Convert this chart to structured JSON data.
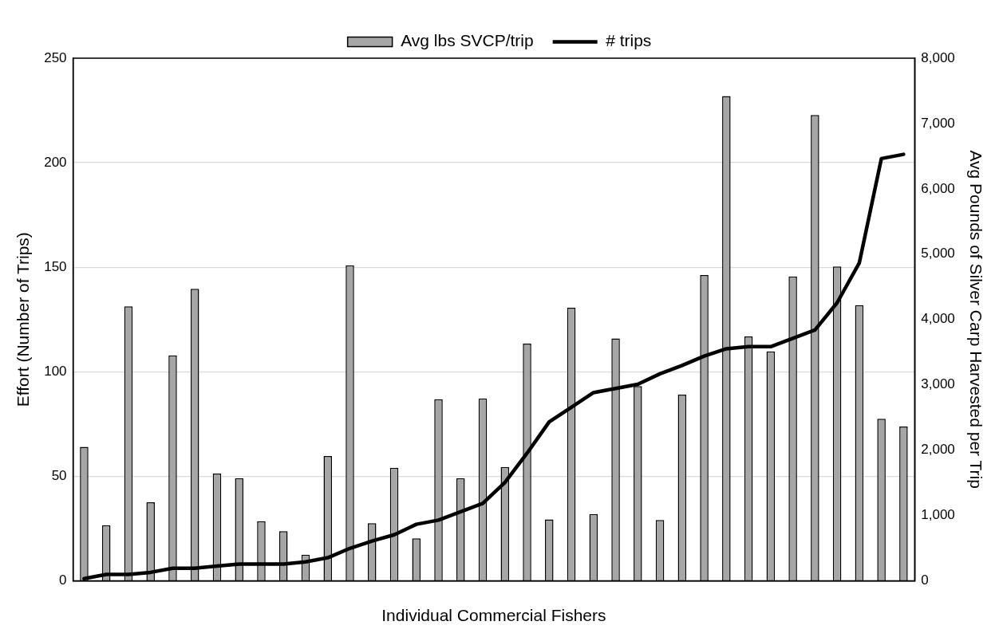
{
  "chart_data": {
    "type": "bar",
    "xlabel": "Individual Commercial Fishers",
    "ylabel": "Effort (Number of Trips)",
    "y2label": "Avg Pounds of Silver Carp Harvested per Trip",
    "categories": [
      null,
      null,
      null,
      null,
      null,
      null,
      null,
      null,
      null,
      null,
      null,
      null,
      null,
      null,
      null,
      null,
      null,
      null,
      null,
      null,
      null,
      null,
      null,
      null,
      null,
      null,
      null,
      null,
      null,
      null,
      null,
      null,
      null,
      null,
      null,
      null,
      null,
      null
    ],
    "series": [
      {
        "name": "Avg lbs SVCP/trip",
        "axis": "y2",
        "color": "#a6a6a6",
        "values": [
          2050,
          850,
          4200,
          1200,
          3450,
          4470,
          1640,
          1570,
          910,
          760,
          400,
          1910,
          4830,
          880,
          1730,
          650,
          2780,
          1570,
          2790,
          1740,
          3630,
          940,
          4180,
          1020,
          3710,
          2980,
          930,
          2850,
          4680,
          7420,
          3740,
          3510,
          4660,
          7130,
          4810,
          4220,
          2480,
          2360
        ]
      },
      {
        "name": "# trips",
        "type": "line",
        "axis": "y",
        "color": "#000000",
        "values": [
          1,
          3,
          3,
          4,
          6,
          6,
          7,
          8,
          8,
          8,
          9,
          11,
          15.5,
          19,
          22,
          27,
          29,
          33,
          37,
          47,
          61,
          76,
          83,
          90,
          92,
          94,
          99,
          103,
          107.5,
          111,
          112,
          112,
          116,
          120,
          133,
          152,
          202,
          204
        ]
      }
    ],
    "ylim": [
      0,
      250
    ],
    "yticks": [
      0,
      50,
      100,
      150,
      200,
      250
    ],
    "y2lim": [
      0,
      8000
    ],
    "y2ticks": [
      0,
      {
        "value": 1000,
        "label": "1,000"
      },
      {
        "value": 2000,
        "label": "2,000"
      },
      {
        "value": 3000,
        "label": "3,000"
      },
      {
        "value": 4000,
        "label": "4,000"
      },
      {
        "value": 5000,
        "label": "5,000"
      },
      {
        "value": 6000,
        "label": "6,000"
      },
      {
        "value": 7000,
        "label": "7,000"
      },
      {
        "value": 8000,
        "label": "8,000"
      }
    ],
    "grid": "y",
    "legend": "top",
    "marker": "none",
    "line_style": "solid"
  }
}
